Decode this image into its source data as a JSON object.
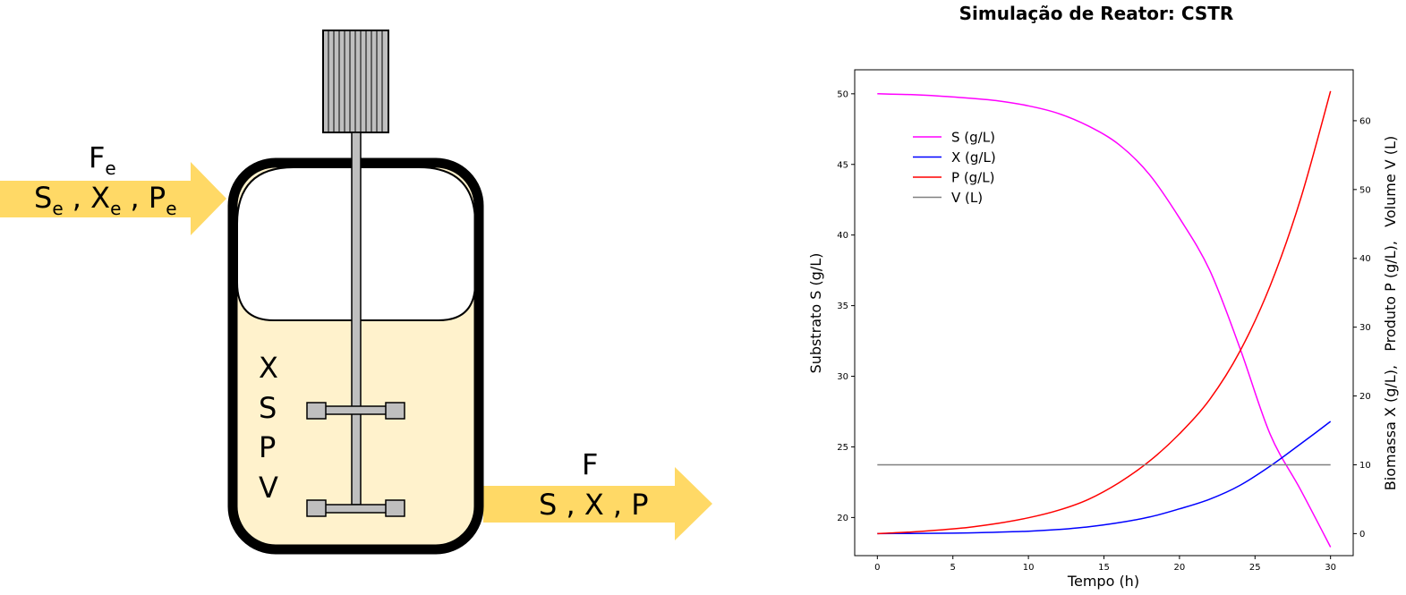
{
  "diagram": {
    "inlet": {
      "flow": "F",
      "flow_sub": "e",
      "s": "S",
      "s_sub": "e",
      "x": "X",
      "x_sub": "e",
      "p": "P",
      "p_sub": "e"
    },
    "outlet": {
      "flow": "F",
      "s": "S",
      "x": "X",
      "p": "P"
    },
    "vessel_labels": [
      "X",
      "S",
      "P",
      "V"
    ],
    "colors": {
      "arrow": "#ffd966",
      "liquid": "#fff2cc",
      "metal": "#bfbfbf",
      "wall": "#000000"
    }
  },
  "chart_data": {
    "type": "line",
    "title": "Simulação de Reator: CSTR",
    "xlabel": "Tempo (h)",
    "ylabel_left": "Substrato S (g/L)",
    "ylabel_right": "Biomassa X (g/L),   Produto P (g/L),   Volume V (L)",
    "xlim": [
      -1.5,
      31.5
    ],
    "ylim_left": [
      17.3,
      51.7
    ],
    "ylim_right": [
      -3.2,
      67.4
    ],
    "x_ticks": [
      0,
      5,
      10,
      15,
      20,
      25,
      30
    ],
    "y_ticks_left": [
      20,
      25,
      30,
      35,
      40,
      45,
      50
    ],
    "y_ticks_right": [
      0,
      10,
      20,
      30,
      40,
      50,
      60
    ],
    "legend_position": "upper-left",
    "x": [
      0,
      2,
      4,
      6,
      8,
      10,
      12,
      14,
      16,
      18,
      20,
      22,
      24,
      26,
      28,
      30
    ],
    "series": [
      {
        "name": "S (g/L)",
        "axis": "left",
        "color": "#ff00ff",
        "values": [
          50.0,
          49.95,
          49.85,
          49.7,
          49.5,
          49.15,
          48.6,
          47.7,
          46.4,
          44.3,
          41.2,
          37.5,
          32.0,
          25.9,
          22.0,
          17.9
        ]
      },
      {
        "name": "X (g/L)",
        "axis": "right",
        "color": "#0000ff",
        "values": [
          0.0,
          0.02,
          0.05,
          0.1,
          0.2,
          0.35,
          0.6,
          1.0,
          1.6,
          2.4,
          3.6,
          5.0,
          7.0,
          9.8,
          13.0,
          16.3
        ]
      },
      {
        "name": "P (g/L)",
        "axis": "right",
        "color": "#ff0000",
        "values": [
          0.0,
          0.2,
          0.5,
          0.9,
          1.5,
          2.3,
          3.4,
          5.0,
          7.4,
          10.5,
          14.5,
          19.5,
          26.5,
          36.0,
          48.5,
          64.3
        ]
      },
      {
        "name": "V (L)",
        "axis": "right",
        "color": "#808080",
        "values": [
          10,
          10,
          10,
          10,
          10,
          10,
          10,
          10,
          10,
          10,
          10,
          10,
          10,
          10,
          10,
          10
        ]
      }
    ]
  }
}
